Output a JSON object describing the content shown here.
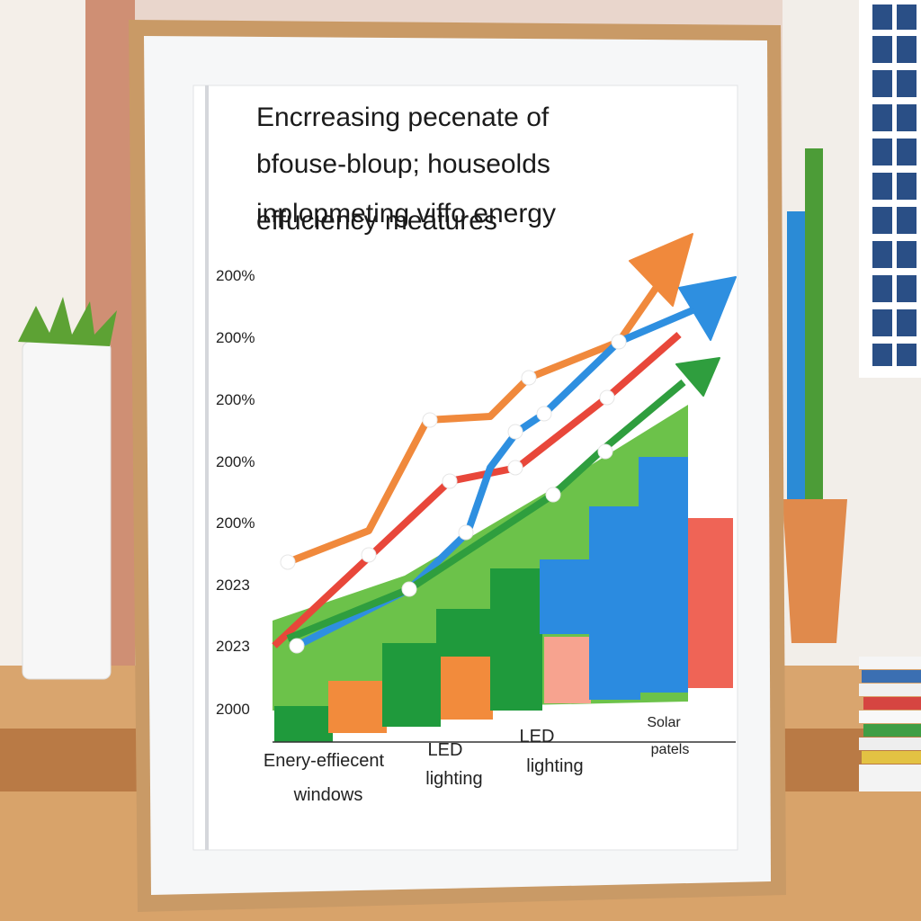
{
  "board": {
    "title_lines": [
      "Encrreasing pecenate of",
      "bfouse-bloup; houseolds",
      "inplopmeting viffo energy",
      "effuciency meatures"
    ],
    "y_labels": [
      "200%",
      "200%",
      "200%",
      "200%",
      "200%",
      "2023",
      "2023",
      "2000"
    ],
    "x_labels": [
      [
        "Enery-effiecent",
        "windows"
      ],
      [
        "LED",
        "lighting"
      ],
      [
        "LED",
        "lighting"
      ],
      [
        "Solar",
        "patels"
      ]
    ]
  }
}
